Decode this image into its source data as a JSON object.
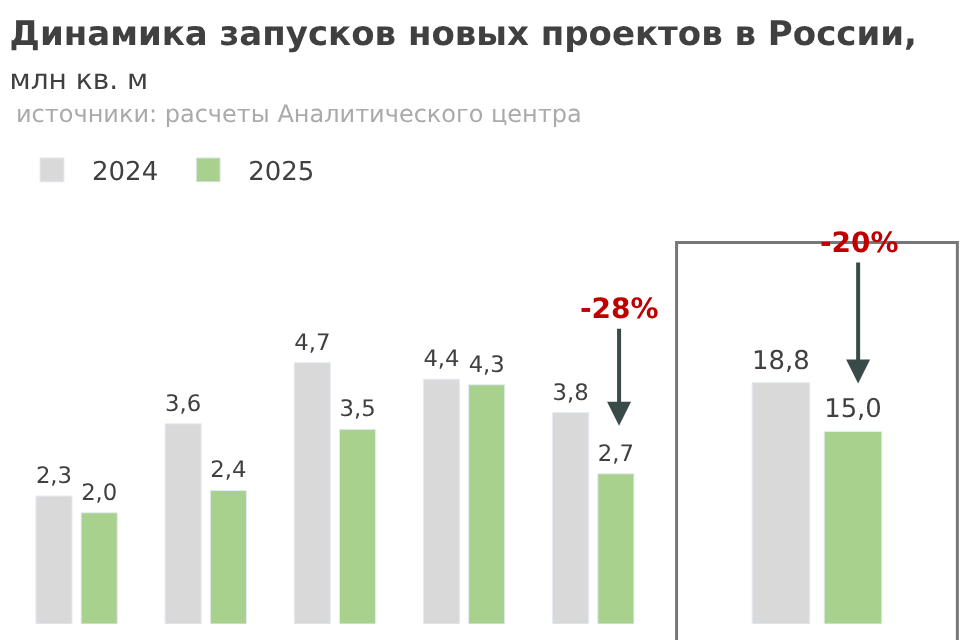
{
  "chart_data": [
    {
      "type": "bar",
      "title": "Динамика запусков новых проектов в России,",
      "subtitle": "млн кв. м",
      "annotations": [
        "источники: расчеты Аналитического центра",
        "-28%"
      ],
      "categories": [
        null,
        null,
        null,
        null,
        null
      ],
      "series": [
        {
          "name": "2024",
          "color": "#d9d9d9",
          "values": [
            2.3,
            3.6,
            4.7,
            4.4,
            3.8
          ],
          "value_labels": [
            "2,3",
            "3,6",
            "4,7",
            "4,4",
            "3,8"
          ]
        },
        {
          "name": "2025",
          "color": "#a9d18e",
          "values": [
            2.0,
            2.4,
            3.5,
            4.3,
            2.7
          ],
          "value_labels": [
            "2,0",
            "2,4",
            "3,5",
            "4,3",
            "2,7"
          ]
        }
      ],
      "legend": "top left"
    },
    {
      "type": "bar",
      "annotations": [
        "-20%"
      ],
      "categories": [
        null
      ],
      "series": [
        {
          "color": "#d9d9d9",
          "values": [
            18.8
          ],
          "value_labels": [
            "18,8"
          ]
        },
        {
          "color": "#a9d18e",
          "values": [
            15.0
          ],
          "value_labels": [
            "15,0"
          ]
        }
      ],
      "legend": false
    }
  ]
}
